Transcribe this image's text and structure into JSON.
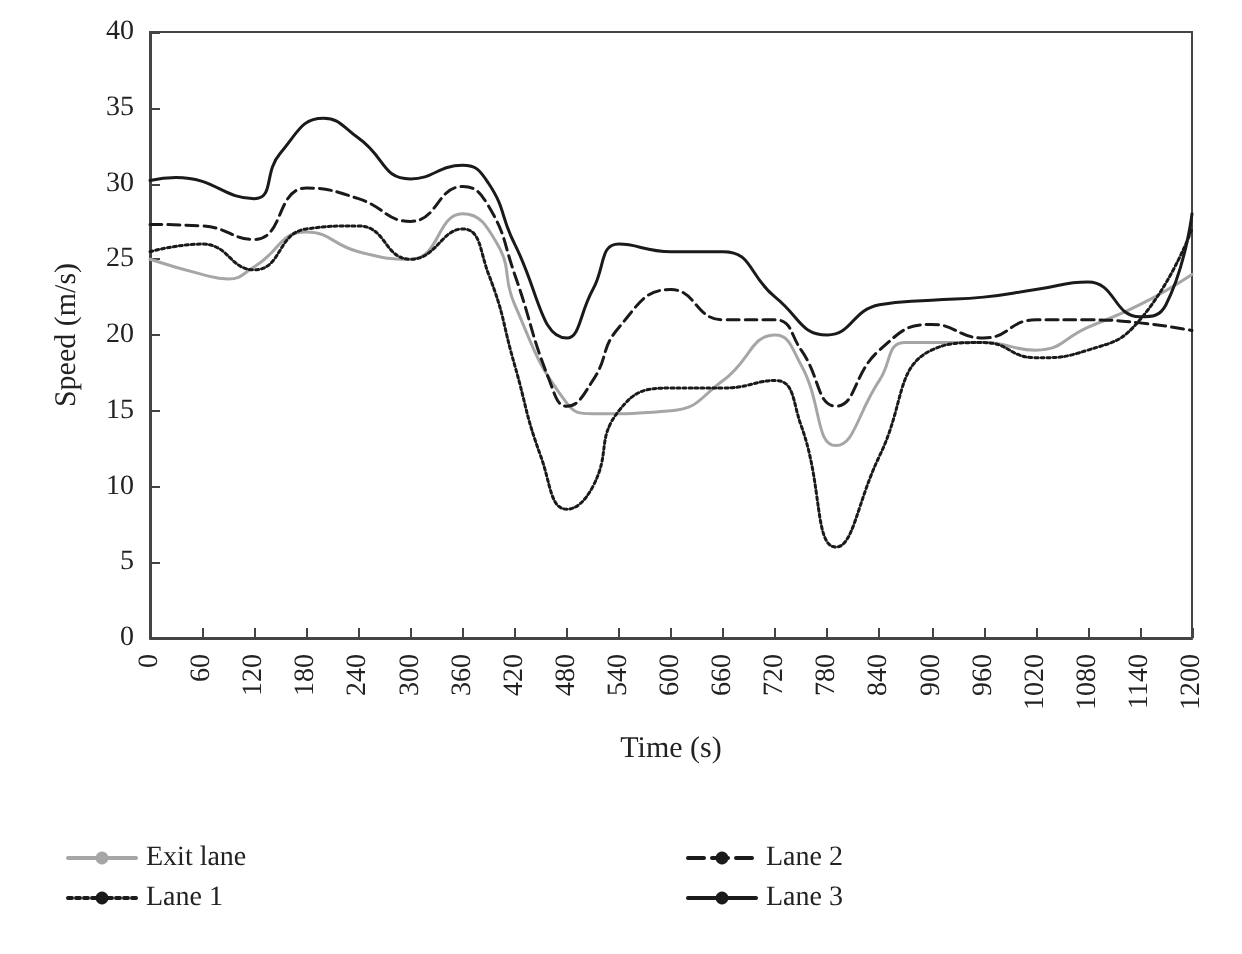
{
  "chart_data": {
    "type": "line",
    "xlabel": "Time (s)",
    "ylabel": "Speed (m/s)",
    "xlim": [
      0,
      1200
    ],
    "xticks": [
      0,
      60,
      120,
      180,
      240,
      300,
      360,
      420,
      480,
      540,
      600,
      660,
      720,
      780,
      840,
      900,
      960,
      1020,
      1080,
      1140,
      1200
    ],
    "ylim": [
      0,
      40
    ],
    "yticks": [
      0,
      5,
      10,
      15,
      20,
      25,
      30,
      35,
      40
    ],
    "grid": false,
    "legend": "bottom",
    "marker": "none",
    "series": [
      {
        "name": "Exit lane",
        "color": "#a6a6a6",
        "line_style": "solid",
        "x": [
          0,
          60,
          90,
          120,
          180,
          240,
          300,
          360,
          400,
          420,
          480,
          510,
          600,
          660,
          720,
          750,
          790,
          840,
          870,
          960,
          1020,
          1080,
          1140,
          1200
        ],
        "values": [
          25,
          24,
          23.7,
          24.5,
          26.8,
          25.5,
          25,
          28,
          26,
          22,
          15.5,
          14.8,
          15,
          17,
          20,
          18,
          12.7,
          17,
          19.5,
          19.5,
          19,
          20.5,
          22,
          24
        ]
      },
      {
        "name": "Lane 1",
        "color": "#1a1a1a",
        "line_style": "dotted",
        "x": [
          0,
          60,
          120,
          180,
          240,
          300,
          360,
          390,
          420,
          450,
          480,
          510,
          540,
          600,
          660,
          720,
          750,
          790,
          840,
          900,
          960,
          1020,
          1080,
          1140,
          1200
        ],
        "values": [
          25.5,
          26,
          24.3,
          27,
          27.2,
          25,
          27,
          24,
          18,
          12,
          8.5,
          10,
          15,
          16.5,
          16.5,
          17,
          14,
          6,
          12,
          19,
          19.5,
          18.5,
          19,
          21,
          27
        ]
      },
      {
        "name": "Lane 2",
        "color": "#1a1a1a",
        "line_style": "dashed",
        "x": [
          0,
          60,
          120,
          180,
          240,
          300,
          360,
          390,
          420,
          460,
          480,
          510,
          540,
          600,
          660,
          720,
          750,
          790,
          840,
          900,
          960,
          1020,
          1080,
          1140,
          1200
        ],
        "values": [
          27.3,
          27.2,
          26.3,
          29.7,
          29,
          27.5,
          29.8,
          28.5,
          24,
          17,
          15.3,
          17,
          20.5,
          23,
          21,
          21,
          19,
          15.3,
          19,
          20.7,
          19.8,
          21,
          21,
          20.8,
          20.3
        ]
      },
      {
        "name": "Lane 3",
        "color": "#1a1a1a",
        "line_style": "solid",
        "x": [
          0,
          30,
          120,
          150,
          200,
          240,
          300,
          360,
          390,
          420,
          480,
          510,
          540,
          600,
          660,
          720,
          780,
          840,
          900,
          960,
          1020,
          1080,
          1140,
          1170,
          1200
        ],
        "values": [
          30.2,
          30.4,
          29,
          32,
          34.3,
          33,
          30.3,
          31.2,
          30,
          26,
          19.8,
          23,
          26,
          25.5,
          25.5,
          22.5,
          20,
          22,
          22.3,
          22.5,
          23,
          23.5,
          21.2,
          22,
          28
        ]
      }
    ]
  }
}
